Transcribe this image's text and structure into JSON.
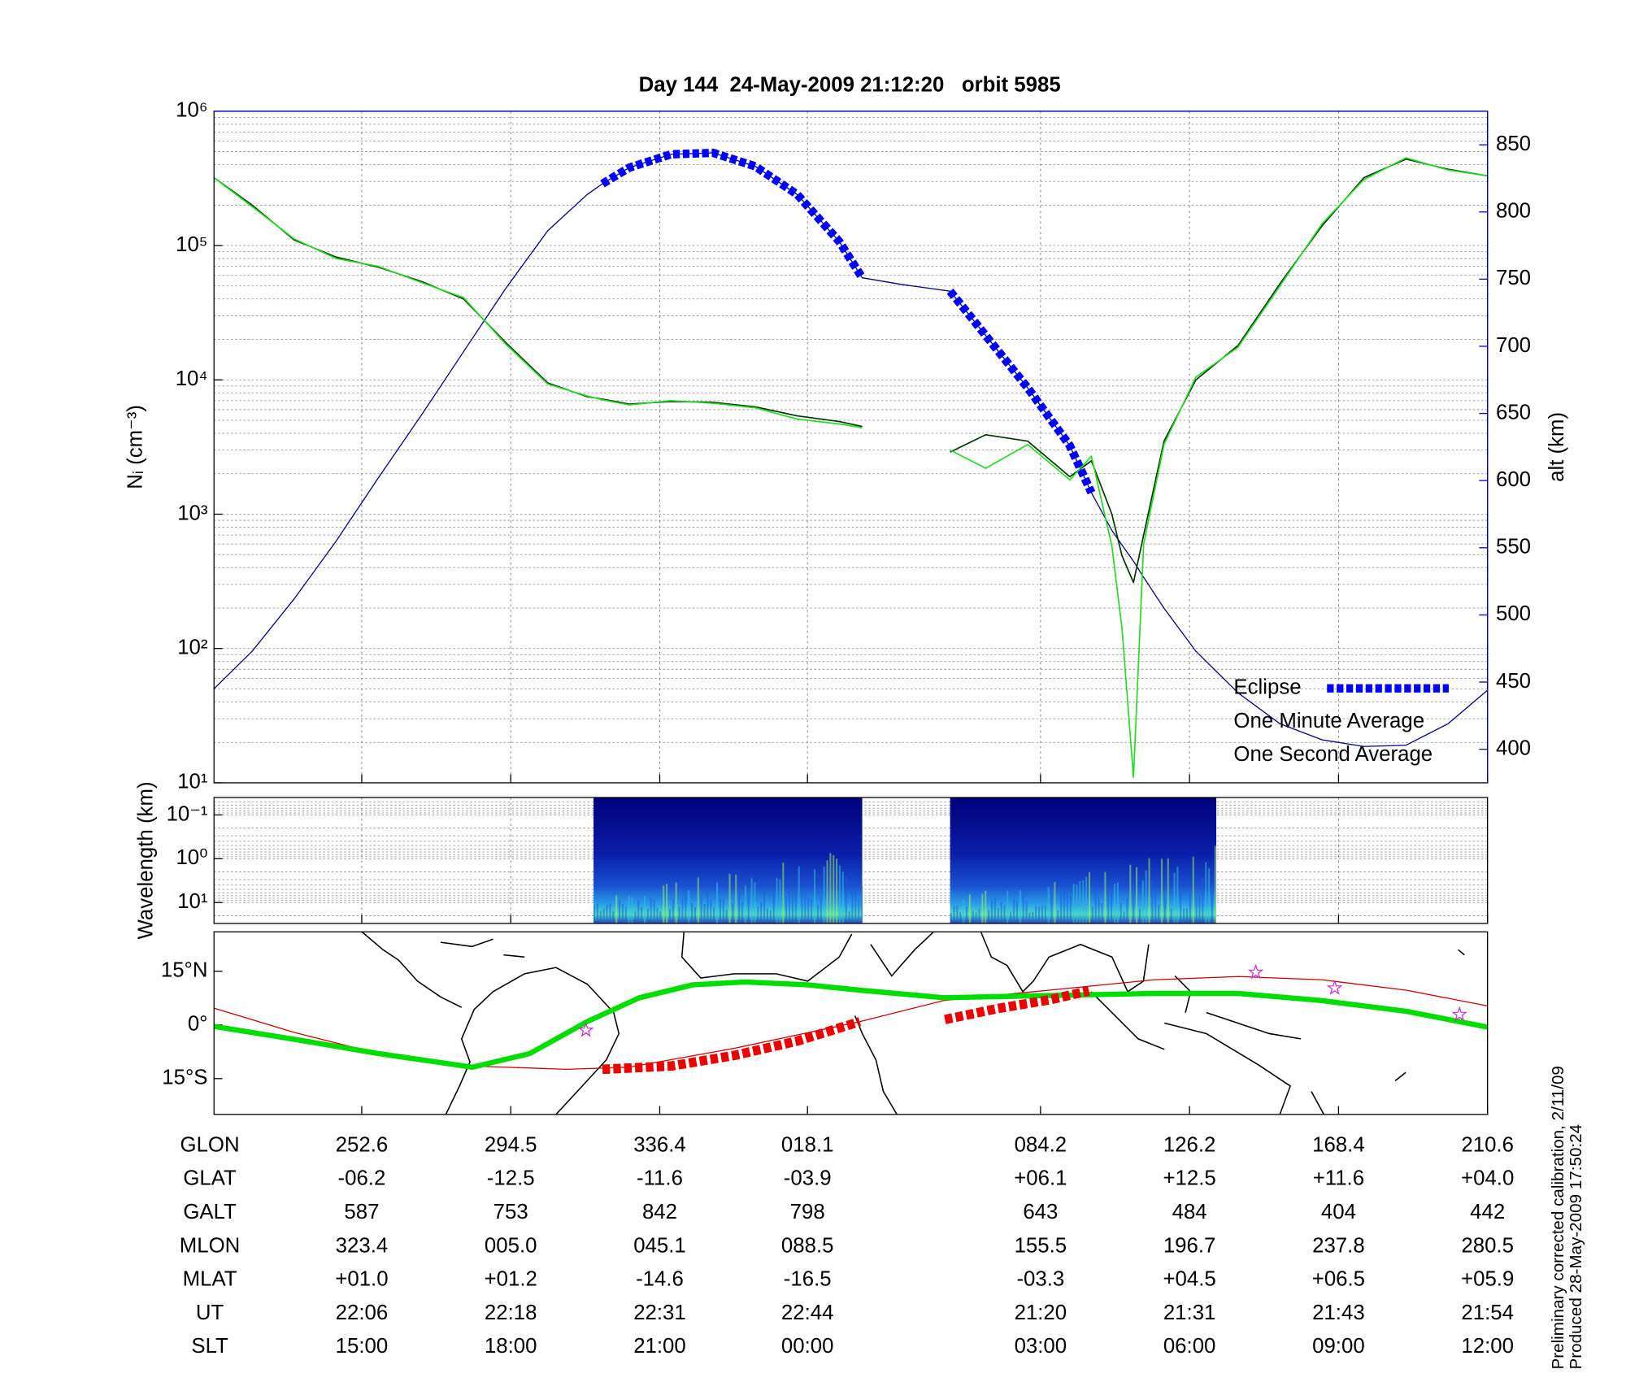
{
  "chart_data": [
    {
      "type": "line",
      "title": "Day 144  24-May-2009 21:12:20   orbit 5985",
      "ylabel": "Nᵢ (cm⁻³)",
      "y2label": "alt (km)",
      "log_scale": true,
      "grid": true,
      "legend": "lower right",
      "xlim": [
        0,
        100
      ],
      "xticks": [
        11.6,
        23.3,
        35.0,
        46.6,
        64.9,
        76.6,
        88.3,
        100
      ],
      "ylim": [
        10,
        1000000
      ],
      "yticks": [
        {
          "value": 10,
          "label": "10¹"
        },
        {
          "value": 100,
          "label": "10²"
        },
        {
          "value": 1000,
          "label": "10³"
        },
        {
          "value": 10000,
          "label": "10⁴"
        },
        {
          "value": 100000,
          "label": "10⁵"
        },
        {
          "value": 1000000,
          "label": "10⁶"
        }
      ],
      "y2lim": [
        375,
        875
      ],
      "y2ticks": [
        400,
        450,
        500,
        550,
        600,
        650,
        700,
        750,
        800,
        850
      ],
      "x": [
        0,
        3.0,
        6.3,
        9.6,
        12.9,
        16.3,
        19.6,
        22.9,
        26.2,
        29.3,
        30.5,
        32.6,
        35.9,
        39.2,
        42.5,
        45.8,
        49.1,
        50.9,
        54.0,
        57.8,
        60.6,
        63.9,
        67.2,
        68.9,
        70.5,
        71.3,
        72.2,
        73.0,
        74.6,
        77.1,
        80.4,
        83.7,
        87.0,
        90.3,
        93.6,
        96.9,
        100
      ],
      "series": [
        {
          "color": "#000080",
          "axis": "y2",
          "linewidth": 1,
          "values": [
            445,
            473,
            512,
            555,
            602,
            649,
            696,
            743,
            786,
            813,
            821,
            833,
            843,
            844,
            834,
            813,
            778,
            751,
            746,
            741,
            708,
            669,
            626,
            591,
            563,
            552,
            540,
            528,
            505,
            473,
            442,
            419,
            407,
            402,
            403,
            419,
            444
          ]
        },
        {
          "name": "Eclipse",
          "color": "#0000ff",
          "axis": "y2",
          "linewidth": 8,
          "dashed": true,
          "values": [
            null,
            null,
            null,
            null,
            null,
            null,
            null,
            null,
            null,
            null,
            821,
            833,
            843,
            844,
            834,
            813,
            778,
            751,
            null,
            741,
            708,
            669,
            626,
            591,
            null,
            null,
            null,
            null,
            null,
            null,
            null,
            null,
            null,
            null,
            null,
            null,
            null
          ]
        },
        {
          "name": "One Minute Average",
          "color": "#003300",
          "linewidth": 1.3,
          "values": [
            320000,
            200000,
            110000,
            82000,
            69000,
            54000,
            40000,
            19000,
            9500,
            7500,
            7200,
            6600,
            6900,
            6800,
            6300,
            5400,
            4900,
            4500,
            null,
            2900,
            3900,
            3500,
            1900,
            2500,
            1000,
            490,
            310,
            700,
            3500,
            10000,
            18000,
            52000,
            140000,
            320000,
            440000,
            370000,
            330000
          ]
        },
        {
          "name": "One Second Average",
          "color": "#22dd22",
          "linewidth": 1.3,
          "values": [
            320000,
            195000,
            112000,
            80000,
            70000,
            53000,
            41000,
            18500,
            9300,
            7600,
            7100,
            6500,
            7000,
            6700,
            6200,
            5100,
            4700,
            4400,
            null,
            3000,
            2200,
            3300,
            1800,
            2700,
            580,
            140,
            11,
            600,
            3300,
            10500,
            17500,
            50000,
            145000,
            310000,
            450000,
            365000,
            330000
          ]
        }
      ]
    },
    {
      "type": "heatmap",
      "ylabel": "Wavelength (km)",
      "log_scale": true,
      "grid": true,
      "xlim": [
        0,
        100
      ],
      "xticks": [
        11.6,
        23.3,
        35.0,
        46.6,
        64.9,
        76.6,
        88.3,
        100
      ],
      "ylim": [
        30,
        0.04
      ],
      "yticks": [
        {
          "value": 0.1,
          "label": "10⁻¹"
        },
        {
          "value": 1,
          "label": "10⁰"
        },
        {
          "value": 10,
          "label": "10¹"
        }
      ],
      "segments": [
        [
          29.8,
          50.9
        ],
        [
          57.8,
          78.7
        ]
      ]
    },
    {
      "type": "map",
      "xlim": [
        0,
        100
      ],
      "xticks": [
        11.6,
        23.3,
        35.0,
        46.6,
        64.9,
        76.6,
        88.3,
        100
      ],
      "ylim": [
        -25,
        26
      ],
      "yticks": [
        {
          "value": 15,
          "label": "15°N"
        },
        {
          "value": 0,
          "label": "0°"
        },
        {
          "value": -15,
          "label": "15°S"
        }
      ],
      "series": [
        {
          "color": "#cc0000",
          "linewidth": 1,
          "x": [
            0,
            6.3,
            12.9,
            20.3,
            27.7,
            32.6,
            40.9,
            50.7,
            57.3,
            65.6,
            73.8,
            80.4,
            87.0,
            93.6,
            100
          ],
          "values": [
            4.7,
            -2.1,
            -8,
            -11.5,
            -12.4,
            -11.8,
            -6.5,
            0.9,
            6.8,
            9.7,
            12.6,
            13.5,
            12.6,
            9.7,
            5.3
          ]
        },
        {
          "color": "#00dd00",
          "linewidth": 5,
          "x": [
            0,
            6.3,
            12.9,
            20.3,
            24.8,
            29.3,
            33.4,
            37.6,
            41.7,
            46.6,
            50.7,
            57.3,
            65.6,
            73.8,
            80.4,
            87.0,
            93.6,
            100
          ],
          "values": [
            -0.4,
            -4,
            -8,
            -11.8,
            -8,
            0.9,
            7.6,
            11.2,
            12,
            11.2,
            9.7,
            7.6,
            8.2,
            8.8,
            8.8,
            6.8,
            3.8,
            -0.6
          ]
        },
        {
          "color": "#ee0000",
          "linewidth": 9,
          "dashed": true,
          "x": [
            30.5,
            35.9,
            40.9,
            45.8,
            50.7,
            54.0,
            57.4,
            61.4,
            65.6,
            68.7
          ],
          "values": [
            -12.4,
            -11.5,
            -8.5,
            -4.5,
            0.9,
            null,
            1.5,
            4.5,
            7.0,
            9.5
          ]
        }
      ],
      "stars": {
        "color": "#cc33cc",
        "x": [
          29.2,
          81.8,
          88.0,
          97.8
        ],
        "values": [
          -1.5,
          14.7,
          10.3,
          2.9
        ]
      }
    }
  ],
  "ephemeris": {
    "rows": [
      {
        "label": "GLON",
        "values": [
          "252.6",
          "294.5",
          "336.4",
          "018.1",
          "084.2",
          "126.2",
          "168.4",
          "210.6"
        ]
      },
      {
        "label": "GLAT",
        "values": [
          "-06.2",
          "-12.5",
          "-11.6",
          "-03.9",
          "+06.1",
          "+12.5",
          "+11.6",
          "+04.0"
        ]
      },
      {
        "label": "GALT",
        "values": [
          "587",
          "753",
          "842",
          "798",
          "643",
          "484",
          "404",
          "442"
        ]
      },
      {
        "label": "MLON",
        "values": [
          "323.4",
          "005.0",
          "045.1",
          "088.5",
          "155.5",
          "196.7",
          "237.8",
          "280.5"
        ]
      },
      {
        "label": "MLAT",
        "values": [
          "+01.0",
          "+01.2",
          "-14.6",
          "-16.5",
          "-03.3",
          "+04.5",
          "+06.5",
          "+05.9"
        ]
      },
      {
        "label": "UT",
        "values": [
          "22:06",
          "22:18",
          "22:31",
          "22:44",
          "21:20",
          "21:31",
          "21:43",
          "21:54"
        ]
      },
      {
        "label": "SLT",
        "values": [
          "15:00",
          "18:00",
          "21:00",
          "00:00",
          "03:00",
          "06:00",
          "09:00",
          "12:00"
        ]
      }
    ]
  },
  "notes": [
    "Preliminary corrected calibration, 2/11/09",
    "Produced 28-May-2009 17:50:24"
  ]
}
